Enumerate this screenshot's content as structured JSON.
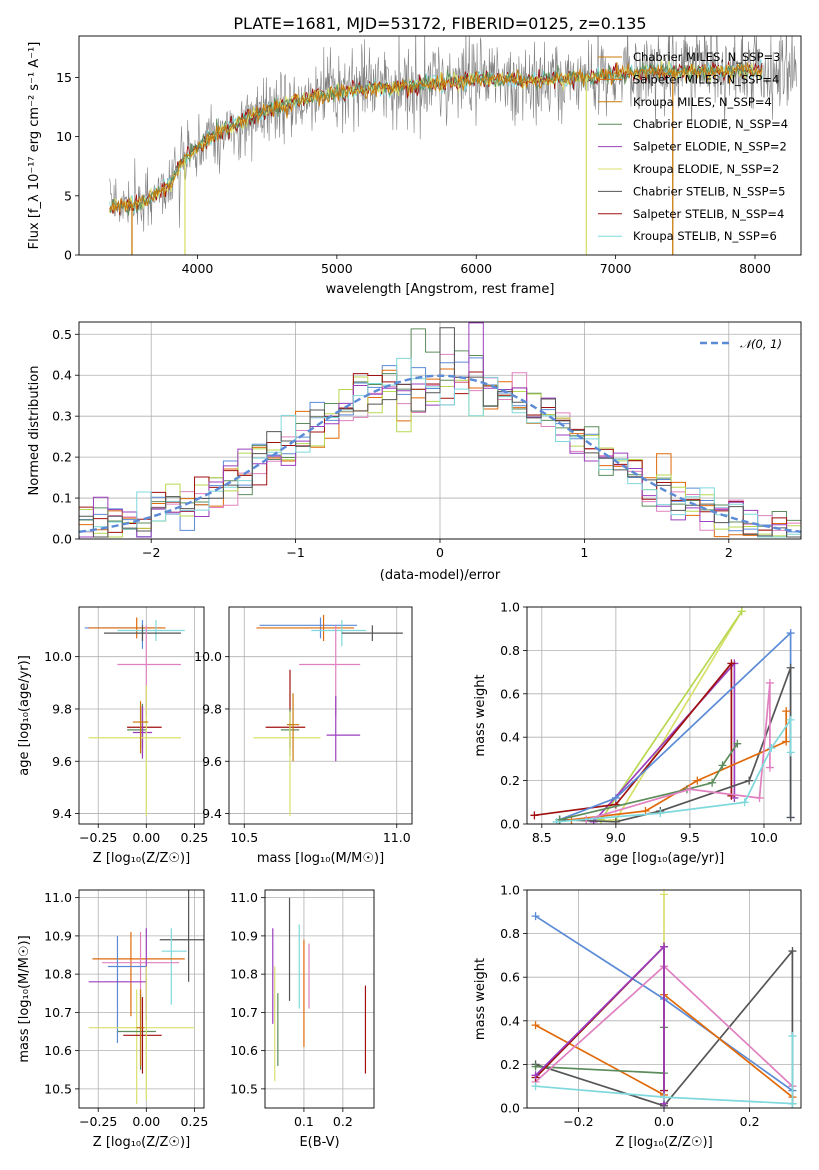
{
  "page_title": "PLATE=1681, MJD=53172, FIBERID=0125, z=0.135",
  "palette": [
    "#c97a0a",
    "#5c8c5c",
    "#9b3fbf",
    "#d8e06c",
    "#555555",
    "#a01010",
    "#7fd8dc",
    "#5b8bd6",
    "#e06a0a",
    "#e080c0",
    "#b8d850"
  ],
  "chart_data": [
    {
      "id": "spectrum",
      "type": "line",
      "title": "PLATE=1681, MJD=53172, FIBERID=0125, z=0.135",
      "xlabel": "wavelength [Angstrom, rest frame]",
      "ylabel": "Flux [f_λ 10⁻¹⁷ erg cm⁻² s⁻¹ A⁻¹]",
      "xlim": [
        3150,
        8330
      ],
      "ylim": [
        0,
        18.5
      ],
      "xticks": [
        "4000",
        "5000",
        "6000",
        "7000",
        "8000"
      ],
      "yticks": [
        "0",
        "5",
        "10",
        "15"
      ],
      "grid": false,
      "legend_position": "top-right",
      "legend": [
        {
          "label": "Chabrier MILES, N_SSP=3",
          "color": "#c97a0a"
        },
        {
          "label": "Salpeter MILES, N_SSP=4",
          "color": "#e06a0a"
        },
        {
          "label": "Kroupa MILES, N_SSP=4",
          "color": "#c97a0a"
        },
        {
          "label": "Chabrier ELODIE, N_SSP=4",
          "color": "#5c8c5c"
        },
        {
          "label": "Salpeter ELODIE, N_SSP=2",
          "color": "#9b3fbf"
        },
        {
          "label": "Kroupa ELODIE, N_SSP=2",
          "color": "#d8e06c"
        },
        {
          "label": "Chabrier STELIB, N_SSP=5",
          "color": "#555555"
        },
        {
          "label": "Salpeter STELIB, N_SSP=4",
          "color": "#a01010"
        },
        {
          "label": "Kroupa STELIB, N_SSP=6",
          "color": "#7fd8dc"
        }
      ],
      "continuum": {
        "x": [
          3350,
          3600,
          3800,
          3900,
          4000,
          4100,
          4300,
          4500,
          4800,
          5200,
          5600,
          6000,
          6400,
          6800,
          7200,
          7600,
          8000,
          8200
        ],
        "y": [
          4.0,
          4.4,
          6.0,
          8.0,
          9.0,
          10.0,
          11.3,
          12.2,
          13.3,
          14.0,
          14.4,
          14.8,
          14.8,
          15.0,
          15.5,
          15.5,
          15.6,
          15.6
        ]
      },
      "data_range": [
        3370,
        8300
      ],
      "model_range": [
        3370,
        8050
      ]
    },
    {
      "id": "residuals",
      "type": "bar",
      "xlabel": "(data-model)/error",
      "ylabel": "Normed distribution",
      "xlim": [
        -2.5,
        2.5
      ],
      "ylim": [
        0,
        0.53
      ],
      "xticks": [
        "−2",
        "−1",
        "0",
        "1",
        "2"
      ],
      "yticks": [
        "0.0",
        "0.1",
        "0.2",
        "0.3",
        "0.4",
        "0.5"
      ],
      "grid": true,
      "legend_position": "top-right",
      "legend": [
        {
          "label": "𝒩(0, 1)",
          "color": "#5b8bd6",
          "style": "dashed"
        }
      ],
      "bin_width": 0.1,
      "bin_start": -2.5
    },
    {
      "id": "age-vs-z",
      "type": "scatter",
      "xlabel": "Z [log₁₀(Z/Z☉)]",
      "ylabel": "age  [log₁₀(age/yr)]",
      "xlim": [
        -0.35,
        0.3
      ],
      "ylim": [
        9.36,
        10.19
      ],
      "xticks": [
        "−0.25",
        "0.00",
        "0.25"
      ],
      "yticks": [
        "9.4",
        "9.6",
        "9.8",
        "10.0"
      ],
      "grid": true,
      "points": [
        {
          "x": -0.02,
          "y": 10.11,
          "xerr": [
            0.3,
            0.1
          ],
          "yerr": [
            0.08,
            0.03
          ],
          "color": "#5b8bd6"
        },
        {
          "x": -0.05,
          "y": 10.11,
          "xerr": [
            0.25,
            0.15
          ],
          "yerr": [
            0.04,
            0.04
          ],
          "color": "#e06a0a"
        },
        {
          "x": 0.05,
          "y": 10.1,
          "xerr": [
            0.2,
            0.15
          ],
          "yerr": [
            0.04,
            0.04
          ],
          "color": "#7fd8dc"
        },
        {
          "x": -0.02,
          "y": 10.09,
          "xerr": [
            0.2,
            0.2
          ],
          "yerr": [
            0.03,
            0.03
          ],
          "color": "#555555"
        },
        {
          "x": 0.0,
          "y": 9.97,
          "xerr": [
            0.15,
            0.18
          ],
          "yerr": [
            0.2,
            0.15
          ],
          "color": "#e080c0"
        },
        {
          "x": -0.02,
          "y": 9.73,
          "xerr": [
            0.08,
            0.1
          ],
          "yerr": [
            0.08,
            0.08
          ],
          "color": "#a01010"
        },
        {
          "x": -0.02,
          "y": 9.72,
          "xerr": [
            0.08,
            0.02
          ],
          "yerr": [
            0.1,
            0.1
          ],
          "color": "#5c8c5c"
        },
        {
          "x": -0.02,
          "y": 9.71,
          "xerr": [
            0.05,
            0.05
          ],
          "yerr": [
            0.1,
            0.1
          ],
          "color": "#9b3fbf"
        },
        {
          "x": 0.0,
          "y": 9.69,
          "xerr": [
            0.3,
            0.18
          ],
          "yerr": [
            0.3,
            0.2
          ],
          "color": "#d8e06c"
        },
        {
          "x": -0.03,
          "y": 9.75,
          "xerr": [
            0.04,
            0.04
          ],
          "yerr": [
            0.12,
            0.08
          ],
          "color": "#c97a0a"
        }
      ]
    },
    {
      "id": "age-vs-mass",
      "type": "scatter",
      "xlabel": "mass [log₁₀(M/M☉)]",
      "ylabel": "",
      "xlim": [
        10.45,
        11.05
      ],
      "ylim": [
        9.36,
        10.19
      ],
      "xticks": [
        "10.5",
        "11.0"
      ],
      "yticks": [
        "9.4",
        "9.6",
        "9.8",
        "10.0"
      ],
      "grid": true,
      "points": [
        {
          "x": 10.75,
          "y": 10.12,
          "xerr": [
            0.2,
            0.12
          ],
          "yerr": [
            0.05,
            0.03
          ],
          "color": "#5b8bd6"
        },
        {
          "x": 10.76,
          "y": 10.11,
          "xerr": [
            0.22,
            0.1
          ],
          "yerr": [
            0.05,
            0.05
          ],
          "color": "#e06a0a"
        },
        {
          "x": 10.82,
          "y": 10.1,
          "xerr": [
            0.1,
            0.08
          ],
          "yerr": [
            0.06,
            0.04
          ],
          "color": "#7fd8dc"
        },
        {
          "x": 10.92,
          "y": 10.09,
          "xerr": [
            0.1,
            0.1
          ],
          "yerr": [
            0.03,
            0.03
          ],
          "color": "#555555"
        },
        {
          "x": 10.8,
          "y": 9.97,
          "xerr": [
            0.12,
            0.08
          ],
          "yerr": [
            0.2,
            0.15
          ],
          "color": "#e080c0"
        },
        {
          "x": 10.65,
          "y": 9.73,
          "xerr": [
            0.08,
            0.05
          ],
          "yerr": [
            0.08,
            0.22
          ],
          "color": "#a01010"
        },
        {
          "x": 10.65,
          "y": 9.72,
          "xerr": [
            0.03,
            0.03
          ],
          "yerr": [
            0.1,
            0.08
          ],
          "color": "#5c8c5c"
        },
        {
          "x": 10.8,
          "y": 9.7,
          "xerr": [
            0.03,
            0.08
          ],
          "yerr": [
            0.1,
            0.15
          ],
          "color": "#9b3fbf"
        },
        {
          "x": 10.65,
          "y": 9.69,
          "xerr": [
            0.12,
            0.1
          ],
          "yerr": [
            0.3,
            0.1
          ],
          "color": "#d8e06c"
        },
        {
          "x": 10.66,
          "y": 9.74,
          "xerr": [
            0.02,
            0.02
          ],
          "yerr": [
            0.14,
            0.12
          ],
          "color": "#c97a0a"
        }
      ]
    },
    {
      "id": "mass-weight-vs-age",
      "type": "line",
      "xlabel": "age  [log₁₀(age/yr)]",
      "ylabel": "mass weight",
      "xlim": [
        8.4,
        10.25
      ],
      "ylim": [
        0,
        1
      ],
      "xticks": [
        "8.5",
        "9.0",
        "9.5",
        "10.0"
      ],
      "yticks": [
        "0.0",
        "0.2",
        "0.4",
        "0.6",
        "0.8",
        "1.0"
      ],
      "grid": true,
      "series": [
        {
          "color": "#d8e06c",
          "x": [
            8.85,
            9.0,
            9.85
          ],
          "y": [
            0.01,
            0.02,
            0.98
          ]
        },
        {
          "color": "#b8d850",
          "x": [
            8.9,
            9.85
          ],
          "y": [
            0.02,
            0.98
          ]
        },
        {
          "color": "#9b3fbf",
          "x": [
            8.85,
            9.8,
            9.8
          ],
          "y": [
            0.01,
            0.74,
            0.12
          ]
        },
        {
          "color": "#a01010",
          "x": [
            8.45,
            9.0,
            9.78,
            9.78
          ],
          "y": [
            0.04,
            0.09,
            0.74,
            0.13
          ]
        },
        {
          "color": "#5b8bd6",
          "x": [
            8.62,
            9.0,
            10.18,
            10.18
          ],
          "y": [
            0.02,
            0.12,
            0.88,
            0.03
          ]
        },
        {
          "color": "#555555",
          "x": [
            8.62,
            9.0,
            9.3,
            9.9,
            10.18,
            10.18
          ],
          "y": [
            0.02,
            0.01,
            0.06,
            0.2,
            0.72,
            0.03
          ]
        },
        {
          "color": "#e06a0a",
          "x": [
            8.7,
            9.2,
            9.55,
            10.15,
            10.15
          ],
          "y": [
            0.02,
            0.06,
            0.2,
            0.38,
            0.52
          ]
        },
        {
          "color": "#5c8c5c",
          "x": [
            8.62,
            9.48,
            9.65,
            9.72,
            9.82
          ],
          "y": [
            0.02,
            0.16,
            0.19,
            0.27,
            0.37
          ]
        },
        {
          "color": "#e080c0",
          "x": [
            8.8,
            9.5,
            9.97,
            10.04,
            10.04
          ],
          "y": [
            0.02,
            0.16,
            0.12,
            0.65,
            0.26
          ]
        },
        {
          "color": "#7fd8dc",
          "x": [
            8.6,
            9.3,
            9.87,
            10.05,
            10.18,
            10.18
          ],
          "y": [
            0.01,
            0.05,
            0.1,
            0.35,
            0.48,
            0.33
          ]
        }
      ]
    },
    {
      "id": "mass-vs-z",
      "type": "scatter",
      "xlabel": "Z [log₁₀(Z/Z☉)]",
      "ylabel": "mass [log₁₀(M/M☉)]",
      "xlim": [
        -0.35,
        0.3
      ],
      "ylim": [
        10.45,
        11.02
      ],
      "xticks": [
        "−0.25",
        "0.00",
        "0.25"
      ],
      "yticks": [
        "10.5",
        "10.6",
        "10.7",
        "10.8",
        "10.9",
        "11.0"
      ],
      "grid": true,
      "points": [
        {
          "x": 0.22,
          "y": 10.89,
          "xerr": [
            0.15,
            0.08
          ],
          "yerr": [
            0.11,
            0.16
          ],
          "color": "#555555"
        },
        {
          "x": 0.13,
          "y": 10.86,
          "xerr": [
            0.05,
            0.08
          ],
          "yerr": [
            0.14,
            0.06
          ],
          "color": "#7fd8dc"
        },
        {
          "x": -0.08,
          "y": 10.84,
          "xerr": [
            0.2,
            0.28
          ],
          "yerr": [
            0.15,
            0.07
          ],
          "color": "#e06a0a"
        },
        {
          "x": -0.03,
          "y": 10.83,
          "xerr": [
            0.2,
            0.2
          ],
          "yerr": [
            0.15,
            0.08
          ],
          "color": "#e080c0"
        },
        {
          "x": -0.15,
          "y": 10.82,
          "xerr": [
            0.05,
            0.15
          ],
          "yerr": [
            0.2,
            0.08
          ],
          "color": "#5b8bd6"
        },
        {
          "x": 0.0,
          "y": 10.78,
          "xerr": [
            0.3,
            0.0
          ],
          "yerr": [
            0.1,
            0.14
          ],
          "color": "#9b3fbf"
        },
        {
          "x": -0.05,
          "y": 10.66,
          "xerr": [
            0.25,
            0.3
          ],
          "yerr": [
            0.2,
            0.1
          ],
          "color": "#d8e06c"
        },
        {
          "x": -0.03,
          "y": 10.65,
          "xerr": [
            0.12,
            0.08
          ],
          "yerr": [
            0.1,
            0.1
          ],
          "color": "#5c8c5c"
        },
        {
          "x": -0.02,
          "y": 10.64,
          "xerr": [
            0.1,
            0.1
          ],
          "yerr": [
            0.1,
            0.1
          ],
          "color": "#a01010"
        },
        {
          "x": -0.03,
          "y": 10.66,
          "xerr": [
            0.02,
            0.02
          ],
          "yerr": [
            0.1,
            0.1
          ],
          "color": "#c97a0a"
        },
        {
          "x": 0.0,
          "y": 10.62,
          "xerr": [
            0.0,
            0.0
          ],
          "yerr": [
            0.15,
            0.2
          ],
          "color": "#d8e06c"
        }
      ]
    },
    {
      "id": "mass-vs-ebv",
      "type": "scatter",
      "xlabel": "E(B-V)",
      "ylabel": "",
      "xlim": [
        0.0,
        0.28
      ],
      "ylim": [
        10.45,
        11.02
      ],
      "xticks": [
        "0.1",
        "0.2"
      ],
      "yticks": [
        "10.5",
        "10.6",
        "10.7",
        "10.8",
        "10.9",
        "11.0"
      ],
      "grid": true,
      "points": [
        {
          "x": 0.063,
          "y": 10.85,
          "xerr": [
            0,
            0
          ],
          "yerr": [
            0.12,
            0.15
          ],
          "color": "#555555"
        },
        {
          "x": 0.088,
          "y": 10.83,
          "xerr": [
            0,
            0
          ],
          "yerr": [
            0.12,
            0.1
          ],
          "color": "#7fd8dc"
        },
        {
          "x": 0.1,
          "y": 10.74,
          "xerr": [
            0,
            0
          ],
          "yerr": [
            0.13,
            0.15
          ],
          "color": "#e06a0a"
        },
        {
          "x": 0.113,
          "y": 10.79,
          "xerr": [
            0,
            0
          ],
          "yerr": [
            0.08,
            0.09
          ],
          "color": "#e080c0"
        },
        {
          "x": 0.02,
          "y": 10.79,
          "xerr": [
            0,
            0
          ],
          "yerr": [
            0.12,
            0.13
          ],
          "color": "#9b3fbf"
        },
        {
          "x": 0.025,
          "y": 10.65,
          "xerr": [
            0,
            0
          ],
          "yerr": [
            0.13,
            0.17
          ],
          "color": "#d8e06c"
        },
        {
          "x": 0.033,
          "y": 10.65,
          "xerr": [
            0,
            0
          ],
          "yerr": [
            0.09,
            0.1
          ],
          "color": "#5c8c5c"
        },
        {
          "x": 0.258,
          "y": 10.66,
          "xerr": [
            0,
            0
          ],
          "yerr": [
            0.12,
            0.11
          ],
          "color": "#a01010"
        }
      ]
    },
    {
      "id": "mass-weight-vs-z",
      "type": "line",
      "xlabel": "Z [log₁₀(Z/Z☉)]",
      "ylabel": "mass weight",
      "xlim": [
        -0.32,
        0.32
      ],
      "ylim": [
        0,
        1
      ],
      "xticks": [
        "−0.2",
        "0.0",
        "0.2"
      ],
      "yticks": [
        "0.0",
        "0.2",
        "0.4",
        "0.6",
        "0.8",
        "1.0"
      ],
      "grid": true,
      "series": [
        {
          "color": "#d8e06c",
          "x": [
            0.0,
            0.0
          ],
          "y": [
            0.98,
            0.02
          ]
        },
        {
          "color": "#5b8bd6",
          "x": [
            -0.3,
            0.0,
            0.3
          ],
          "y": [
            0.88,
            0.5,
            0.08
          ]
        },
        {
          "color": "#555555",
          "x": [
            -0.3,
            0.0,
            0.3,
            0.3
          ],
          "y": [
            0.2,
            0.01,
            0.72,
            0.02
          ]
        },
        {
          "color": "#e06a0a",
          "x": [
            -0.3,
            0.0,
            0.0,
            0.3
          ],
          "y": [
            0.38,
            0.06,
            0.52,
            0.05
          ]
        },
        {
          "color": "#5c8c5c",
          "x": [
            -0.3,
            0.0,
            0.0
          ],
          "y": [
            0.19,
            0.16,
            0.37
          ]
        },
        {
          "color": "#e080c0",
          "x": [
            -0.3,
            0.0,
            0.3
          ],
          "y": [
            0.12,
            0.65,
            0.1
          ]
        },
        {
          "color": "#a01010",
          "x": [
            -0.3,
            0.0,
            0.0
          ],
          "y": [
            0.14,
            0.74,
            0.08
          ]
        },
        {
          "color": "#9b3fbf",
          "x": [
            -0.3,
            0.0,
            0.0
          ],
          "y": [
            0.15,
            0.74,
            0.02
          ]
        },
        {
          "color": "#7fd8dc",
          "x": [
            -0.3,
            0.0,
            0.3,
            0.3
          ],
          "y": [
            0.1,
            0.05,
            0.02,
            0.33
          ]
        }
      ]
    }
  ]
}
